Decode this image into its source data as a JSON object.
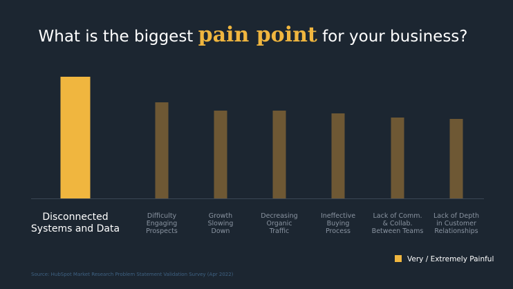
{
  "chart_data": {
    "type": "bar",
    "title": {
      "before": "What is the biggest ",
      "highlight": "pain point",
      "after": " for your business?"
    },
    "categories": [
      "Disconnected\nSystems and Data",
      "Difficulty\nEngaging\nProspects",
      "Growth\nSlowing\nDown",
      "Decreasing\nOrganic\nTraffic",
      "Ineffective\nBuying\nProcess",
      "Lack of Comm.\n& Collab.\nBetween Teams",
      "Lack of Depth\nin Customer\nRelationships"
    ],
    "series": [
      {
        "name": "Very / Extremely Painful",
        "color": "#f0b63f",
        "colors": [
          "#f0b63f",
          "#6e5834",
          "#6e5834",
          "#6e5834",
          "#6e5834",
          "#6e5834",
          "#6e5834"
        ],
        "values": [
          176,
          139,
          127,
          127,
          123,
          117,
          115
        ]
      }
    ],
    "ylim": [
      0,
      180
    ],
    "legend": "bottom-right",
    "source": "Source: HubSpot Market Research Problem Statement Validation Survey (Apr 2022)"
  }
}
